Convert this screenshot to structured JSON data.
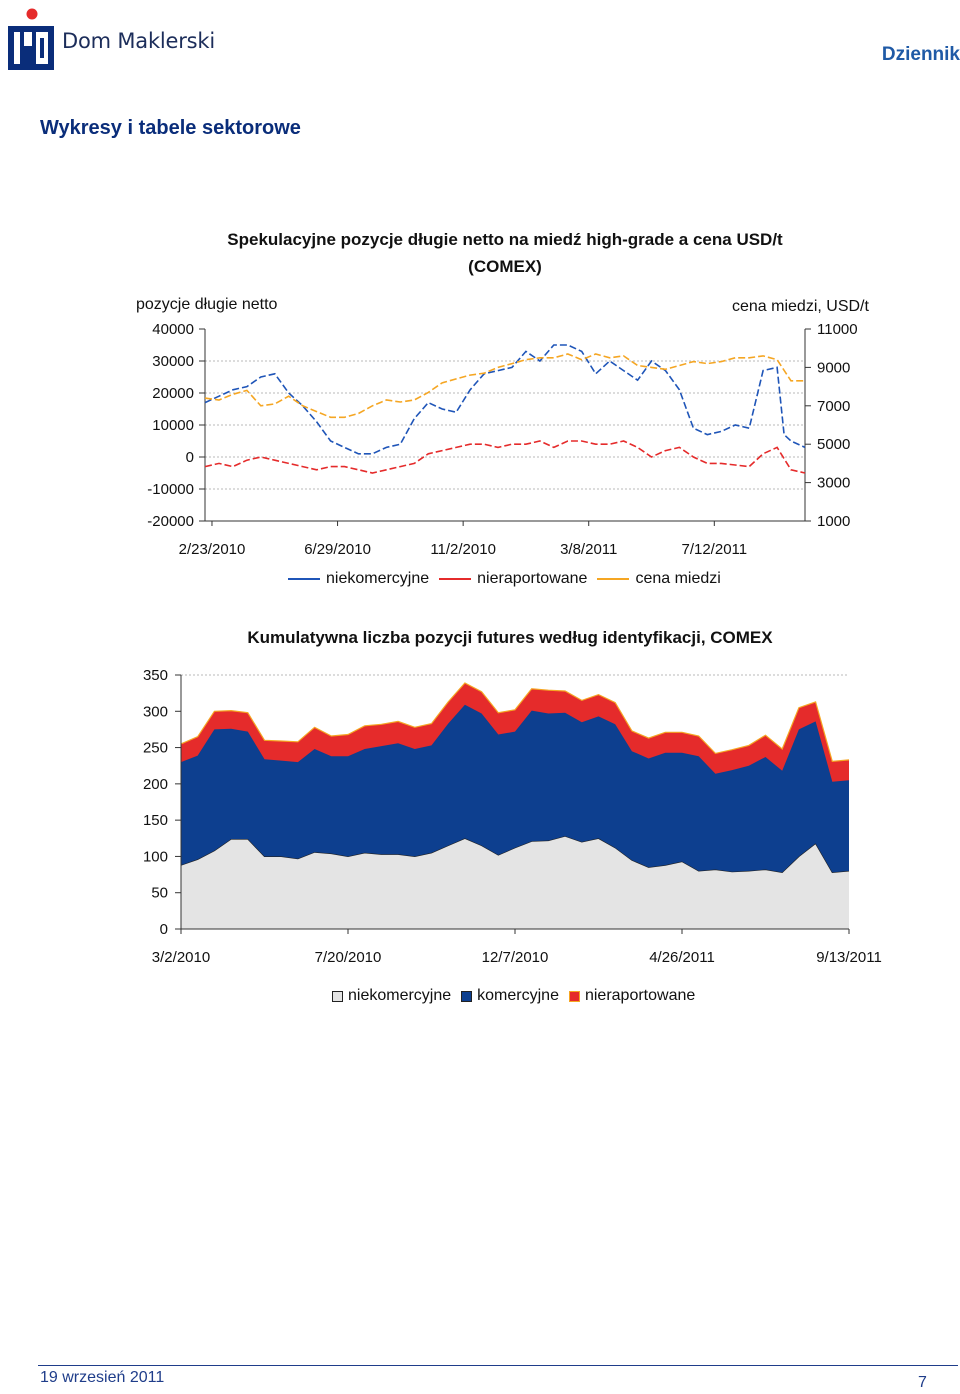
{
  "header": {
    "brand": "Dom Maklerski",
    "section": "Dziennik"
  },
  "page": {
    "title": "Wykresy i tabele sektorowe"
  },
  "footer": {
    "date": "19 wrzesień 2011",
    "page_number": "7"
  },
  "colors": {
    "navy": "#1c3f94",
    "blue": "#1f55b8",
    "red": "#e52b2b",
    "orange": "#f5a623",
    "gray_fill": "#e4e4e4",
    "brand": "#0a2d7a"
  },
  "chart_data": [
    {
      "type": "line",
      "title": "Spekulacyjne pozycje długie netto na miedź high-grade a cena USD/t (COMEX)",
      "ylabel": "pozycje długie netto",
      "y2label": "cena miedzi, USD/t",
      "ylim": [
        -20000,
        40000
      ],
      "y_ticks": [
        "40000",
        "30000",
        "20000",
        "10000",
        "0",
        "-10000",
        "-20000"
      ],
      "y2lim": [
        1000,
        11000
      ],
      "y2_ticks": [
        "11000",
        "9000",
        "7000",
        "5000",
        "3000",
        "1000"
      ],
      "x_ticks": [
        "2/23/2010",
        "6/29/2010",
        "11/2/2010",
        "3/8/2011",
        "7/12/2011"
      ],
      "x_range_weeks": [
        0,
        86
      ],
      "series": [
        {
          "name": "niekomercyjne",
          "axis": "left",
          "style": "dashed",
          "points": [
            [
              0,
              17000
            ],
            [
              2,
              19000
            ],
            [
              4,
              21000
            ],
            [
              6,
              22000
            ],
            [
              8,
              25000
            ],
            [
              10,
              26000
            ],
            [
              12,
              20000
            ],
            [
              14,
              16000
            ],
            [
              16,
              11000
            ],
            [
              18,
              5000
            ],
            [
              20,
              3000
            ],
            [
              22,
              1000
            ],
            [
              24,
              1000
            ],
            [
              26,
              3000
            ],
            [
              28,
              4000
            ],
            [
              30,
              12000
            ],
            [
              32,
              17000
            ],
            [
              34,
              15000
            ],
            [
              36,
              14000
            ],
            [
              38,
              21000
            ],
            [
              40,
              26000
            ],
            [
              42,
              27000
            ],
            [
              44,
              28000
            ],
            [
              46,
              33000
            ],
            [
              48,
              30000
            ],
            [
              50,
              35000
            ],
            [
              52,
              35000
            ],
            [
              54,
              33000
            ],
            [
              56,
              26000
            ],
            [
              58,
              30000
            ],
            [
              60,
              27000
            ],
            [
              62,
              24000
            ],
            [
              64,
              30000
            ],
            [
              66,
              27000
            ],
            [
              68,
              21000
            ],
            [
              70,
              9000
            ],
            [
              72,
              7000
            ],
            [
              74,
              8000
            ],
            [
              76,
              10000
            ],
            [
              78,
              9000
            ],
            [
              80,
              27000
            ],
            [
              82,
              28000
            ],
            [
              83,
              7000
            ],
            [
              84,
              5000
            ],
            [
              86,
              3000
            ]
          ]
        },
        {
          "name": "nieraportowane",
          "axis": "left",
          "style": "dashed",
          "points": [
            [
              0,
              -3000
            ],
            [
              2,
              -2000
            ],
            [
              4,
              -3000
            ],
            [
              6,
              -1000
            ],
            [
              8,
              0
            ],
            [
              10,
              -1000
            ],
            [
              12,
              -2000
            ],
            [
              14,
              -3000
            ],
            [
              16,
              -4000
            ],
            [
              18,
              -3000
            ],
            [
              20,
              -3000
            ],
            [
              22,
              -4000
            ],
            [
              24,
              -5000
            ],
            [
              26,
              -4000
            ],
            [
              28,
              -3000
            ],
            [
              30,
              -2000
            ],
            [
              32,
              1000
            ],
            [
              34,
              2000
            ],
            [
              36,
              3000
            ],
            [
              38,
              4000
            ],
            [
              40,
              4000
            ],
            [
              42,
              3000
            ],
            [
              44,
              4000
            ],
            [
              46,
              4000
            ],
            [
              48,
              5000
            ],
            [
              50,
              3000
            ],
            [
              52,
              5000
            ],
            [
              54,
              5000
            ],
            [
              56,
              4000
            ],
            [
              58,
              4000
            ],
            [
              60,
              5000
            ],
            [
              62,
              3000
            ],
            [
              64,
              0
            ],
            [
              66,
              2000
            ],
            [
              68,
              3000
            ],
            [
              70,
              0
            ],
            [
              72,
              -2000
            ],
            [
              74,
              -2000
            ],
            [
              76,
              -2500
            ],
            [
              78,
              -3000
            ],
            [
              80,
              1000
            ],
            [
              82,
              3000
            ],
            [
              84,
              -4000
            ],
            [
              86,
              -5000
            ]
          ]
        },
        {
          "name": "cena miedzi",
          "axis": "right",
          "style": "dashed",
          "points": [
            [
              0,
              7400
            ],
            [
              2,
              7300
            ],
            [
              4,
              7600
            ],
            [
              6,
              7800
            ],
            [
              8,
              7000
            ],
            [
              10,
              7100
            ],
            [
              12,
              7500
            ],
            [
              14,
              7000
            ],
            [
              16,
              6700
            ],
            [
              18,
              6400
            ],
            [
              20,
              6400
            ],
            [
              22,
              6600
            ],
            [
              24,
              7000
            ],
            [
              26,
              7300
            ],
            [
              28,
              7200
            ],
            [
              30,
              7300
            ],
            [
              32,
              7700
            ],
            [
              34,
              8200
            ],
            [
              36,
              8400
            ],
            [
              38,
              8600
            ],
            [
              40,
              8700
            ],
            [
              42,
              9000
            ],
            [
              44,
              9200
            ],
            [
              46,
              9400
            ],
            [
              48,
              9500
            ],
            [
              50,
              9500
            ],
            [
              52,
              9700
            ],
            [
              54,
              9400
            ],
            [
              56,
              9700
            ],
            [
              58,
              9500
            ],
            [
              60,
              9600
            ],
            [
              62,
              9100
            ],
            [
              64,
              9000
            ],
            [
              66,
              8900
            ],
            [
              68,
              9100
            ],
            [
              70,
              9300
            ],
            [
              72,
              9200
            ],
            [
              74,
              9300
            ],
            [
              76,
              9500
            ],
            [
              78,
              9500
            ],
            [
              80,
              9600
            ],
            [
              82,
              9400
            ],
            [
              84,
              8300
            ],
            [
              86,
              8300
            ]
          ]
        }
      ],
      "legend_position": "bottom"
    },
    {
      "type": "area",
      "stacked": true,
      "title": "Kumulatywna liczba pozycji futures według identyfikacji, COMEX",
      "ylim": [
        0,
        350
      ],
      "y_ticks": [
        "350",
        "300",
        "250",
        "200",
        "150",
        "100",
        "50",
        "0"
      ],
      "x_ticks": [
        "3/2/2010",
        "7/20/2010",
        "12/7/2010",
        "4/26/2011",
        "9/13/2011"
      ],
      "x_range_weeks": [
        0,
        80
      ],
      "x": [
        0,
        2,
        4,
        6,
        8,
        10,
        12,
        14,
        16,
        18,
        20,
        22,
        24,
        26,
        28,
        30,
        32,
        34,
        36,
        38,
        40,
        42,
        44,
        46,
        48,
        50,
        52,
        54,
        56,
        58,
        60,
        62,
        64,
        66,
        68,
        70,
        72,
        74,
        76,
        78,
        80
      ],
      "series": [
        {
          "name": "niekomercyjne",
          "values": [
            88,
            96,
            108,
            124,
            124,
            100,
            100,
            97,
            106,
            104,
            100,
            105,
            103,
            103,
            100,
            105,
            115,
            125,
            115,
            102,
            112,
            121,
            122,
            128,
            120,
            125,
            112,
            95,
            85,
            88,
            93,
            80,
            82,
            79,
            80,
            82,
            78,
            100,
            118,
            78,
            80
          ]
        },
        {
          "name": "komercyjne",
          "values": [
            142,
            143,
            167,
            152,
            148,
            134,
            132,
            133,
            142,
            134,
            138,
            143,
            149,
            153,
            148,
            148,
            168,
            184,
            182,
            166,
            160,
            180,
            175,
            170,
            165,
            168,
            170,
            150,
            150,
            155,
            150,
            158,
            132,
            140,
            145,
            155,
            140,
            175,
            168,
            125,
            125
          ]
        },
        {
          "name": "nieraportowane",
          "values": [
            25,
            26,
            25,
            25,
            26,
            26,
            27,
            28,
            30,
            28,
            30,
            32,
            30,
            30,
            30,
            30,
            30,
            30,
            30,
            30,
            30,
            30,
            32,
            30,
            30,
            30,
            30,
            28,
            28,
            28,
            28,
            28,
            28,
            28,
            28,
            30,
            30,
            30,
            27,
            28,
            28
          ]
        }
      ],
      "legend_position": "bottom"
    }
  ]
}
